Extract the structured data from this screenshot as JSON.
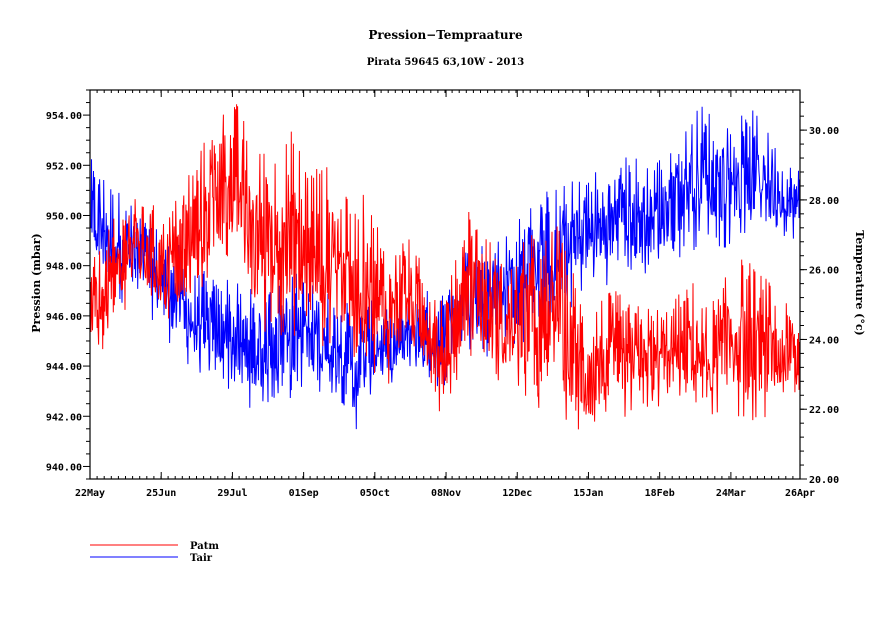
{
  "chart_data": {
    "type": "line",
    "title": "Pression−Tempraature",
    "subtitle": "Pirata 59645 63,10W - 2013",
    "xlabel": "",
    "ylabel_left": "Pression (mbar)",
    "ylabel_right": "Temperature (°c)",
    "x_tick_labels": [
      "22May",
      "25Jun",
      "29Jul",
      "01Sep",
      "05Oct",
      "08Nov",
      "12Dec",
      "15Jan",
      "18Feb",
      "24Mar",
      "26Apr"
    ],
    "x_range_days": [
      0,
      339
    ],
    "x_tick_days": [
      0,
      34,
      68,
      102,
      136,
      170,
      204,
      238,
      272,
      306,
      339
    ],
    "y_left": {
      "range": [
        939.5,
        955.0
      ],
      "ticks": [
        940,
        942,
        944,
        946,
        948,
        950,
        952,
        954
      ],
      "tick_labels": [
        "940.00",
        "942.00",
        "944.00",
        "946.00",
        "948.00",
        "950.00",
        "952.00",
        "954.00"
      ]
    },
    "y_right": {
      "range": [
        20.0,
        31.15
      ],
      "ticks": [
        20,
        22,
        24,
        26,
        28,
        30
      ],
      "tick_labels": [
        "20.00",
        "22.00",
        "24.00",
        "26.00",
        "28.00",
        "30.00"
      ]
    },
    "grid": false,
    "legend": {
      "placement": "bottom-left",
      "entries": [
        "Patm",
        "Tair"
      ]
    },
    "series": [
      {
        "name": "Patm",
        "color": "#ff0000",
        "axis": "left",
        "step_days": 6,
        "low": [
          944.0,
          944.5,
          945.0,
          946.5,
          946.5,
          946.0,
          945.5,
          945.5,
          945.5,
          946.5,
          947.5,
          948.0,
          947.0,
          945.5,
          944.5,
          945.0,
          945.0,
          944.5,
          944.5,
          944.5,
          945.0,
          944.0,
          944.0,
          943.5,
          943.0,
          944.5,
          944.0,
          943.0,
          942.0,
          942.5,
          944.5,
          944.0,
          943.5,
          943.0,
          942.5,
          941.8,
          941.0,
          943.5,
          941.5,
          940.3,
          941.0,
          941.5,
          942.0,
          941.5,
          941.5,
          942.0,
          942.5,
          942.5,
          942.0,
          941.5,
          942.0,
          942.0,
          941.5,
          941.5,
          942.0,
          942.5,
          942.0
        ],
        "high": [
          948.0,
          949.0,
          950.0,
          951.0,
          950.5,
          950.5,
          950.0,
          951.0,
          952.5,
          953.0,
          954.0,
          954.8,
          954.5,
          952.0,
          953.5,
          953.0,
          953.5,
          953.0,
          952.5,
          952.0,
          951.0,
          950.5,
          951.0,
          950.0,
          948.5,
          949.5,
          948.5,
          948.0,
          947.5,
          948.0,
          951.0,
          950.0,
          949.0,
          948.0,
          948.5,
          949.5,
          949.0,
          950.0,
          948.5,
          947.5,
          947.0,
          947.0,
          947.0,
          946.5,
          946.5,
          946.5,
          946.5,
          947.0,
          947.5,
          946.5,
          947.0,
          948.0,
          948.5,
          948.0,
          947.5,
          946.5,
          946.5
        ]
      },
      {
        "name": "Tair",
        "color": "#0000ff",
        "axis": "right",
        "step_days": 6,
        "low": [
          26.0,
          25.3,
          25.0,
          25.0,
          24.8,
          24.5,
          24.0,
          23.5,
          23.0,
          22.8,
          22.5,
          22.3,
          22.0,
          22.0,
          21.8,
          21.8,
          22.0,
          22.5,
          22.5,
          22.3,
          22.2,
          21.0,
          22.2,
          22.5,
          22.7,
          23.0,
          23.0,
          22.5,
          22.5,
          23.0,
          23.3,
          23.5,
          23.5,
          23.8,
          23.5,
          24.0,
          24.2,
          24.2,
          24.5,
          25.0,
          25.3,
          25.5,
          25.8,
          25.5,
          25.5,
          25.8,
          26.0,
          26.3,
          26.5,
          26.8,
          26.5,
          26.5,
          26.8,
          27.0,
          26.8,
          27.0,
          26.8
        ],
        "high": [
          29.2,
          29.0,
          28.5,
          28.0,
          27.8,
          27.5,
          27.0,
          26.8,
          26.0,
          26.0,
          25.8,
          26.0,
          25.5,
          25.5,
          25.8,
          25.8,
          26.0,
          26.0,
          25.5,
          25.5,
          25.2,
          25.0,
          25.2,
          25.0,
          24.8,
          25.0,
          25.3,
          25.5,
          25.5,
          26.0,
          26.8,
          27.0,
          27.0,
          27.2,
          27.5,
          28.0,
          28.3,
          28.5,
          28.5,
          28.8,
          29.0,
          28.8,
          29.0,
          29.5,
          29.2,
          29.5,
          29.3,
          30.0,
          30.5,
          31.0,
          30.0,
          30.3,
          30.5,
          30.6,
          30.0,
          29.5,
          29.0
        ]
      }
    ]
  }
}
